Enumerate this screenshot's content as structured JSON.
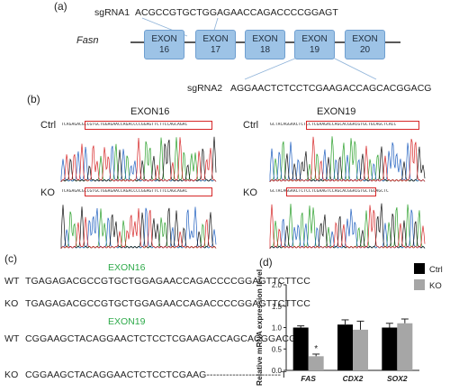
{
  "panels": {
    "a": "(a)",
    "b": "(b)",
    "c": "(c)",
    "d": "(d)"
  },
  "panel_a": {
    "sgrna1_label": "sgRNA1",
    "sgrna1_seq": "ACGCCGTGCTGGAGAACCAGACCCCGGAGT",
    "gene": "Fasn",
    "exons": [
      {
        "label": "EXON",
        "num": "16"
      },
      {
        "label": "EXON",
        "num": "17"
      },
      {
        "label": "EXON",
        "num": "18"
      },
      {
        "label": "EXON",
        "num": "19"
      },
      {
        "label": "EXON",
        "num": "20"
      }
    ],
    "sgrna2_label": "sgRNA2",
    "sgrna2_seq": "AGGAACTCTCCTCGAAGACCAGCACGGACG"
  },
  "panel_b": {
    "exon16": "EXON16",
    "exon19": "EXON19",
    "ctrl": "Ctrl",
    "ko": "KO",
    "colors": {
      "A": "#2ca02c",
      "C": "#1f5fbf",
      "G": "#111111",
      "T": "#d62728",
      "box": "#d62728"
    }
  },
  "panel_c": {
    "exon16": "EXON16",
    "exon19": "EXON19",
    "rows": [
      {
        "label": "WT",
        "seq": "TGAGAGACGCCGTGCTGGAGAACCAGACCCCGGAGTTCTTCC"
      },
      {
        "label": "KO",
        "seq": "TGAGAGACGCCGTGCTGGAGAACCAGACCCCGGAGTTCTTCC"
      },
      {
        "label": "WT",
        "seq": "CGGAAGCTACAGGAACTCTCCTCGAAGACCAGCACGGACG"
      },
      {
        "label": "KO",
        "seq": "CGGAAGCTACAGGAACTCTCCTCGAAG-----------------------T"
      }
    ]
  },
  "chart_data": {
    "type": "bar",
    "categories": [
      "FAS",
      "CDX2",
      "SOX2"
    ],
    "series": [
      {
        "name": "Ctrl",
        "color": "#000000",
        "values": [
          1.0,
          1.07,
          1.0
        ],
        "errors": [
          0.04,
          0.11,
          0.1
        ]
      },
      {
        "name": "KO",
        "color": "#a6a6a6",
        "values": [
          0.33,
          0.95,
          1.1
        ],
        "errors": [
          0.05,
          0.2,
          0.1
        ]
      }
    ],
    "ylabel": "Relative mRNA expression level",
    "ylim": [
      0,
      2.0
    ],
    "yticks": [
      "0.0",
      "0.5",
      "1.0",
      "1.5",
      "2.0"
    ],
    "significance": [
      {
        "category": "FAS",
        "mark": "*"
      }
    ],
    "legend_position": "top-right"
  }
}
